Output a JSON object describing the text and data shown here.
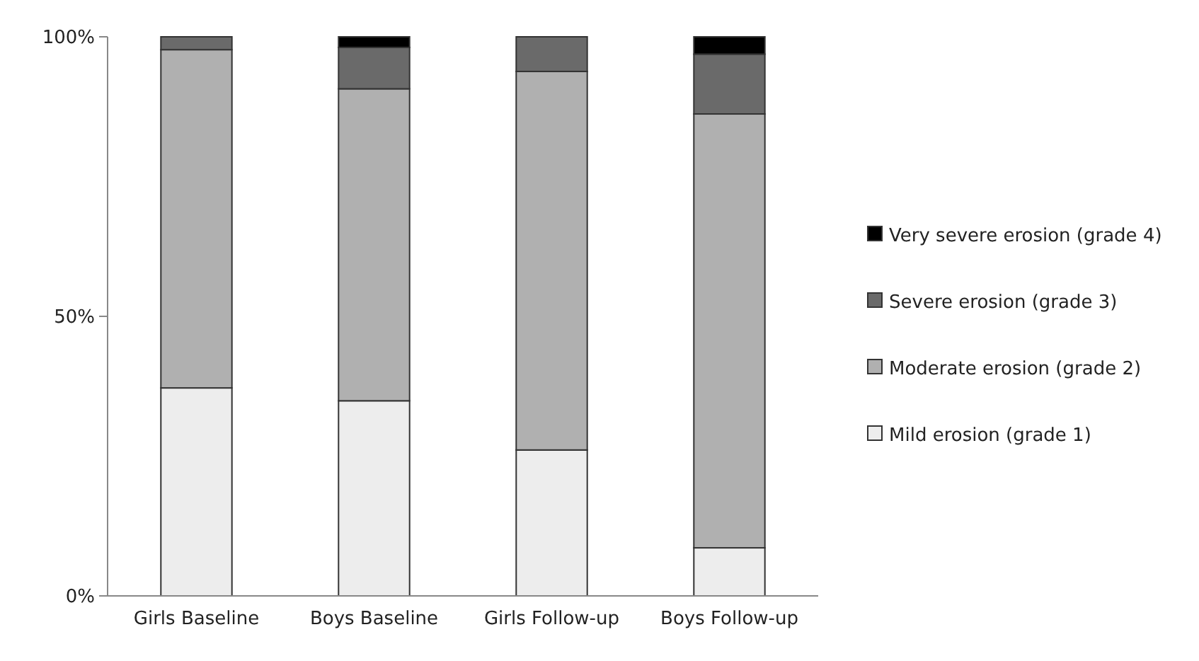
{
  "chart_data": {
    "type": "bar",
    "stacked": true,
    "categories": [
      "Girls Baseline",
      "Boys Baseline",
      "Girls Follow-up",
      "Boys Follow-up"
    ],
    "series": [
      {
        "name": "Mild erosion (grade 1)",
        "color": "#ededed",
        "values": [
          37.2,
          34.9,
          26.1,
          8.6
        ]
      },
      {
        "name": "Moderate erosion (grade 2)",
        "color": "#b0b0b0",
        "values": [
          60.5,
          55.8,
          67.7,
          77.6
        ]
      },
      {
        "name": "Severe erosion (grade 3)",
        "color": "#6a6a6a",
        "values": [
          2.3,
          7.4,
          6.2,
          10.7
        ]
      },
      {
        "name": "Very severe erosion (grade 4)",
        "color": "#000000",
        "values": [
          0,
          1.9,
          0,
          3.1
        ]
      }
    ],
    "ylim": [
      0,
      100
    ],
    "yticks": [
      {
        "value": 0,
        "label": "0%"
      },
      {
        "value": 50,
        "label": "50%"
      },
      {
        "value": 100,
        "label": "100%"
      }
    ],
    "grid": false,
    "legend": "right"
  }
}
